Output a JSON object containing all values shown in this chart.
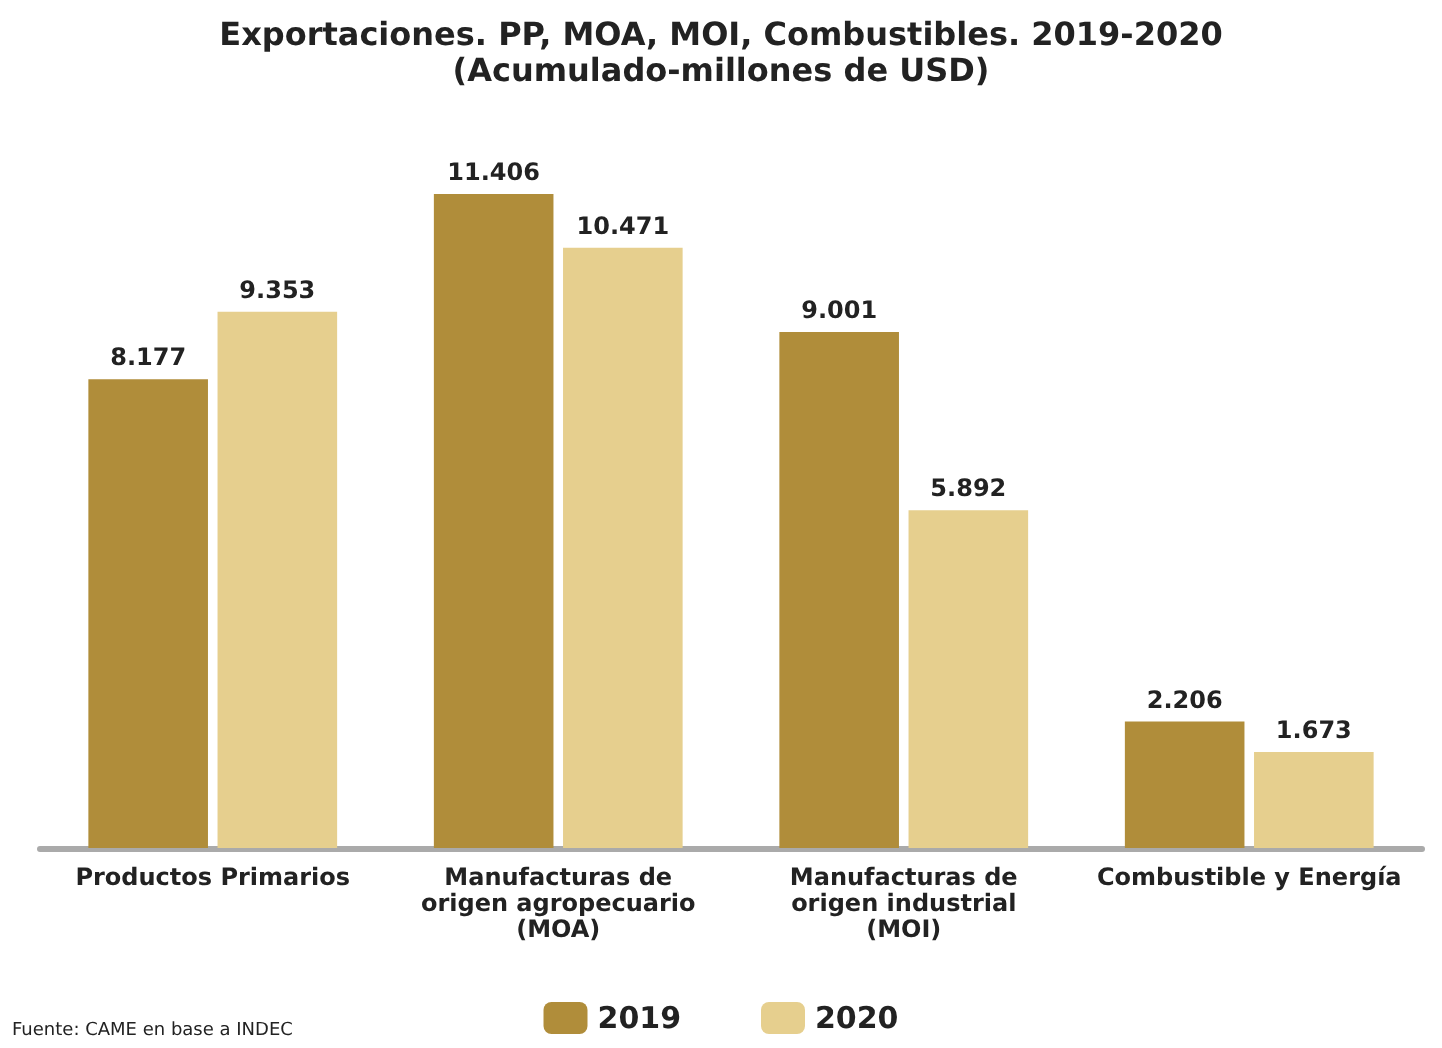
{
  "chart_data": {
    "type": "bar",
    "title": "Exportaciones. PP, MOA, MOI, Combustibles. 2019-2020",
    "subtitle": "(Acumulado-millones de USD)",
    "categories": [
      "Productos Primarios",
      "Manufacturas de\norigen agropecuario\n(MOA)",
      "Manufacturas de\norigen industrial\n(MOI)",
      "Combustible y Energía"
    ],
    "series": [
      {
        "name": "2019",
        "color": "#b08d3a",
        "values": [
          8177,
          11406,
          9001,
          2206
        ],
        "value_labels": [
          "8.177",
          "11.406",
          "9.001",
          "2.206"
        ]
      },
      {
        "name": "2020",
        "color": "#e6cf8e",
        "values": [
          9353,
          10471,
          5892,
          1673
        ],
        "value_labels": [
          "9.353",
          "10.471",
          "5.892",
          "1.673"
        ]
      }
    ],
    "annotations": [
      "Fuente: CAME en base a INDEC"
    ],
    "legend": "bottom"
  }
}
